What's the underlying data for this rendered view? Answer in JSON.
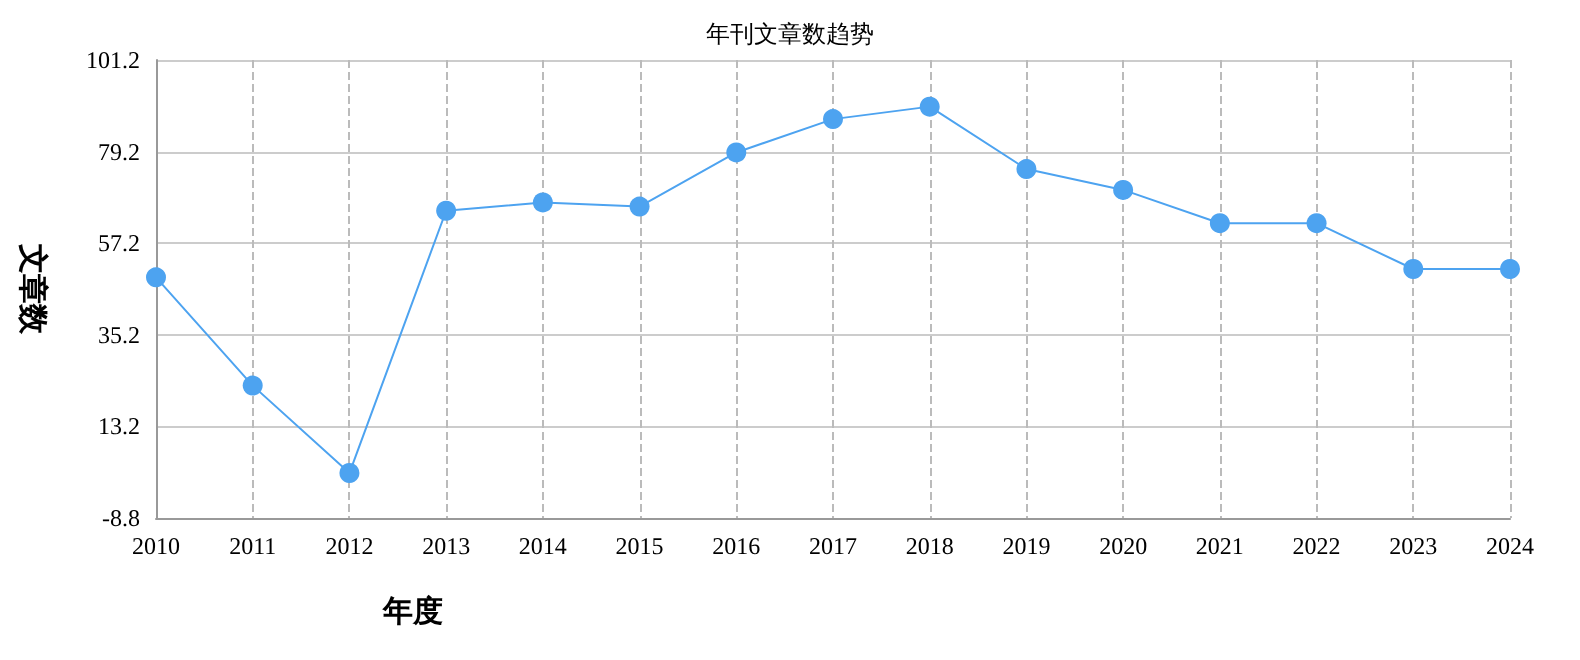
{
  "chart_data": {
    "type": "line",
    "title": "年刊文章数趋势",
    "xlabel": "年度",
    "ylabel": "文章数",
    "categories": [
      "2010",
      "2011",
      "2012",
      "2013",
      "2014",
      "2015",
      "2016",
      "2017",
      "2018",
      "2019",
      "2020",
      "2021",
      "2022",
      "2023",
      "2024"
    ],
    "series": [
      {
        "color": "#4da3f0",
        "values": [
          49,
          23,
          2,
          65,
          67,
          66,
          79,
          87,
          90,
          75,
          70,
          62,
          62,
          51,
          51
        ]
      }
    ],
    "ylim": [
      -8.8,
      101.2
    ],
    "yticks": [
      -8.8,
      13.2,
      35.2,
      57.2,
      79.2,
      101.2
    ],
    "grid": true,
    "marker": "circle",
    "line_style": "solid"
  }
}
